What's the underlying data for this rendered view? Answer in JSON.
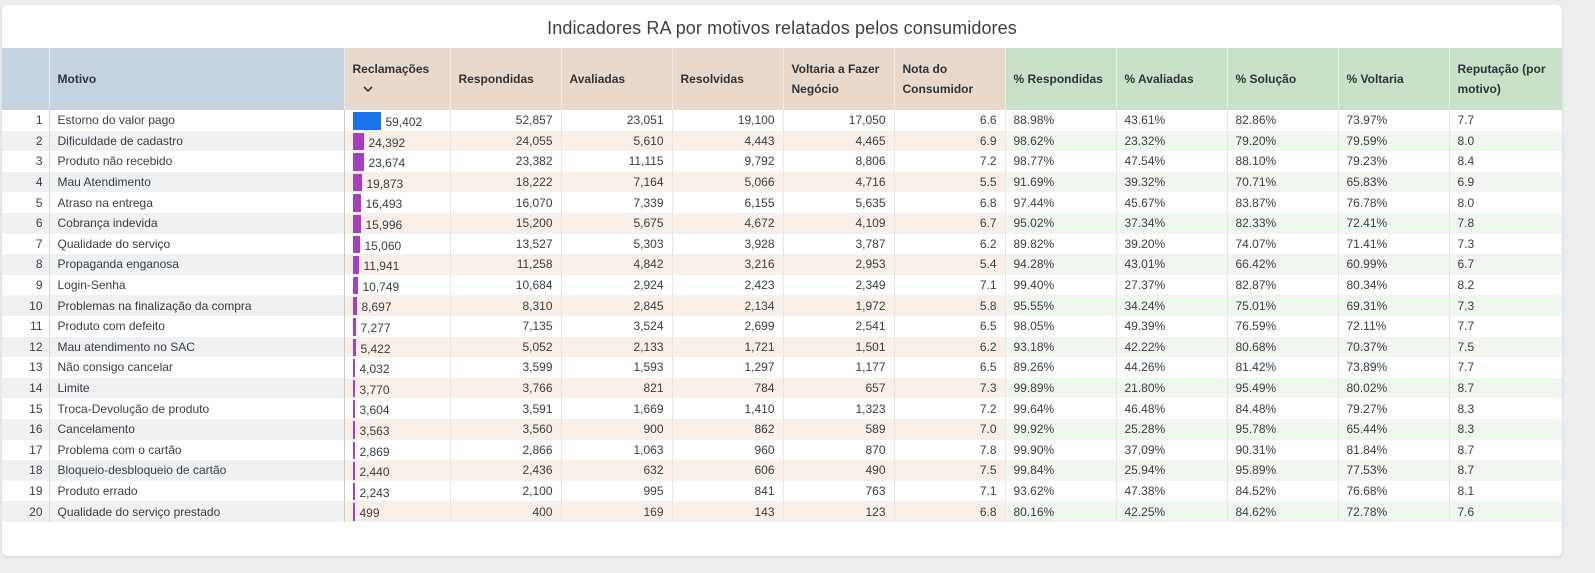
{
  "title": "Indicadores RA por motivos relatados pelos consumidores",
  "colors": {
    "bar_top": "#1a73e8",
    "bar_other": "#a63ec0"
  },
  "headers": {
    "idx": "",
    "motivo": "Motivo",
    "reclamacoes": "Reclamações",
    "respondidas": "Respondidas",
    "avaliadas": "Avaliadas",
    "resolvidas": "Resolvidas",
    "voltaria1": "Voltaria a Fazer",
    "voltaria2": "Negócio",
    "nota1": "Nota do",
    "nota2": "Consumidor",
    "pct_respondidas": "% Respondidas",
    "pct_avaliadas": "% Avaliadas",
    "pct_solucao": "% Solução",
    "pct_voltaria": "% Voltaria",
    "reputacao1": "Reputação (por",
    "reputacao2": "motivo)"
  },
  "sort_icon": "chevron-down-icon",
  "rows": [
    {
      "idx": "1",
      "motivo": "Estorno do valor pago",
      "reclamacoes": "59,402",
      "reclamacoes_value": 59402,
      "respondidas": "52,857",
      "avaliadas": "23,051",
      "resolvidas": "19,100",
      "voltaria": "17,050",
      "nota": "6.6",
      "pct_respondidas": "88.98%",
      "pct_avaliadas": "43.61%",
      "pct_solucao": "82.86%",
      "pct_voltaria": "73.97%",
      "reputacao": "7.7"
    },
    {
      "idx": "2",
      "motivo": "Dificuldade de cadastro",
      "reclamacoes": "24,392",
      "reclamacoes_value": 24392,
      "respondidas": "24,055",
      "avaliadas": "5,610",
      "resolvidas": "4,443",
      "voltaria": "4,465",
      "nota": "6.9",
      "pct_respondidas": "98.62%",
      "pct_avaliadas": "23.32%",
      "pct_solucao": "79.20%",
      "pct_voltaria": "79.59%",
      "reputacao": "8.0"
    },
    {
      "idx": "3",
      "motivo": "Produto não recebido",
      "reclamacoes": "23,674",
      "reclamacoes_value": 23674,
      "respondidas": "23,382",
      "avaliadas": "11,115",
      "resolvidas": "9,792",
      "voltaria": "8,806",
      "nota": "7.2",
      "pct_respondidas": "98.77%",
      "pct_avaliadas": "47.54%",
      "pct_solucao": "88.10%",
      "pct_voltaria": "79.23%",
      "reputacao": "8.4"
    },
    {
      "idx": "4",
      "motivo": "Mau Atendimento",
      "reclamacoes": "19,873",
      "reclamacoes_value": 19873,
      "respondidas": "18,222",
      "avaliadas": "7,164",
      "resolvidas": "5,066",
      "voltaria": "4,716",
      "nota": "5.5",
      "pct_respondidas": "91.69%",
      "pct_avaliadas": "39.32%",
      "pct_solucao": "70.71%",
      "pct_voltaria": "65.83%",
      "reputacao": "6.9"
    },
    {
      "idx": "5",
      "motivo": "Atraso na entrega",
      "reclamacoes": "16,493",
      "reclamacoes_value": 16493,
      "respondidas": "16,070",
      "avaliadas": "7,339",
      "resolvidas": "6,155",
      "voltaria": "5,635",
      "nota": "6.8",
      "pct_respondidas": "97.44%",
      "pct_avaliadas": "45.67%",
      "pct_solucao": "83.87%",
      "pct_voltaria": "76.78%",
      "reputacao": "8.0"
    },
    {
      "idx": "6",
      "motivo": "Cobrança indevida",
      "reclamacoes": "15,996",
      "reclamacoes_value": 15996,
      "respondidas": "15,200",
      "avaliadas": "5,675",
      "resolvidas": "4,672",
      "voltaria": "4,109",
      "nota": "6.7",
      "pct_respondidas": "95.02%",
      "pct_avaliadas": "37.34%",
      "pct_solucao": "82.33%",
      "pct_voltaria": "72.41%",
      "reputacao": "7.8"
    },
    {
      "idx": "7",
      "motivo": "Qualidade do serviço",
      "reclamacoes": "15,060",
      "reclamacoes_value": 15060,
      "respondidas": "13,527",
      "avaliadas": "5,303",
      "resolvidas": "3,928",
      "voltaria": "3,787",
      "nota": "6.2",
      "pct_respondidas": "89.82%",
      "pct_avaliadas": "39.20%",
      "pct_solucao": "74.07%",
      "pct_voltaria": "71.41%",
      "reputacao": "7.3"
    },
    {
      "idx": "8",
      "motivo": "Propaganda enganosa",
      "reclamacoes": "11,941",
      "reclamacoes_value": 11941,
      "respondidas": "11,258",
      "avaliadas": "4,842",
      "resolvidas": "3,216",
      "voltaria": "2,953",
      "nota": "5.4",
      "pct_respondidas": "94.28%",
      "pct_avaliadas": "43.01%",
      "pct_solucao": "66.42%",
      "pct_voltaria": "60.99%",
      "reputacao": "6.7"
    },
    {
      "idx": "9",
      "motivo": "Login-Senha",
      "reclamacoes": "10,749",
      "reclamacoes_value": 10749,
      "respondidas": "10,684",
      "avaliadas": "2,924",
      "resolvidas": "2,423",
      "voltaria": "2,349",
      "nota": "7.1",
      "pct_respondidas": "99.40%",
      "pct_avaliadas": "27.37%",
      "pct_solucao": "82.87%",
      "pct_voltaria": "80.34%",
      "reputacao": "8.2"
    },
    {
      "idx": "10",
      "motivo": "Problemas na finalização da compra",
      "reclamacoes": "8,697",
      "reclamacoes_value": 8697,
      "respondidas": "8,310",
      "avaliadas": "2,845",
      "resolvidas": "2,134",
      "voltaria": "1,972",
      "nota": "5.8",
      "pct_respondidas": "95.55%",
      "pct_avaliadas": "34.24%",
      "pct_solucao": "75.01%",
      "pct_voltaria": "69.31%",
      "reputacao": "7.3"
    },
    {
      "idx": "11",
      "motivo": "Produto com defeito",
      "reclamacoes": "7,277",
      "reclamacoes_value": 7277,
      "respondidas": "7,135",
      "avaliadas": "3,524",
      "resolvidas": "2,699",
      "voltaria": "2,541",
      "nota": "6.5",
      "pct_respondidas": "98.05%",
      "pct_avaliadas": "49.39%",
      "pct_solucao": "76.59%",
      "pct_voltaria": "72.11%",
      "reputacao": "7.7"
    },
    {
      "idx": "12",
      "motivo": "Mau atendimento no SAC",
      "reclamacoes": "5,422",
      "reclamacoes_value": 5422,
      "respondidas": "5,052",
      "avaliadas": "2,133",
      "resolvidas": "1,721",
      "voltaria": "1,501",
      "nota": "6.2",
      "pct_respondidas": "93.18%",
      "pct_avaliadas": "42.22%",
      "pct_solucao": "80.68%",
      "pct_voltaria": "70.37%",
      "reputacao": "7.5"
    },
    {
      "idx": "13",
      "motivo": "Não consigo cancelar",
      "reclamacoes": "4,032",
      "reclamacoes_value": 4032,
      "respondidas": "3,599",
      "avaliadas": "1,593",
      "resolvidas": "1,297",
      "voltaria": "1,177",
      "nota": "6.5",
      "pct_respondidas": "89.26%",
      "pct_avaliadas": "44.26%",
      "pct_solucao": "81.42%",
      "pct_voltaria": "73.89%",
      "reputacao": "7.7"
    },
    {
      "idx": "14",
      "motivo": "Limite",
      "reclamacoes": "3,770",
      "reclamacoes_value": 3770,
      "respondidas": "3,766",
      "avaliadas": "821",
      "resolvidas": "784",
      "voltaria": "657",
      "nota": "7.3",
      "pct_respondidas": "99.89%",
      "pct_avaliadas": "21.80%",
      "pct_solucao": "95.49%",
      "pct_voltaria": "80.02%",
      "reputacao": "8.7"
    },
    {
      "idx": "15",
      "motivo": "Troca-Devolução de produto",
      "reclamacoes": "3,604",
      "reclamacoes_value": 3604,
      "respondidas": "3,591",
      "avaliadas": "1,669",
      "resolvidas": "1,410",
      "voltaria": "1,323",
      "nota": "7.2",
      "pct_respondidas": "99.64%",
      "pct_avaliadas": "46.48%",
      "pct_solucao": "84.48%",
      "pct_voltaria": "79.27%",
      "reputacao": "8.3"
    },
    {
      "idx": "16",
      "motivo": "Cancelamento",
      "reclamacoes": "3,563",
      "reclamacoes_value": 3563,
      "respondidas": "3,560",
      "avaliadas": "900",
      "resolvidas": "862",
      "voltaria": "589",
      "nota": "7.0",
      "pct_respondidas": "99.92%",
      "pct_avaliadas": "25.28%",
      "pct_solucao": "95.78%",
      "pct_voltaria": "65.44%",
      "reputacao": "8.3"
    },
    {
      "idx": "17",
      "motivo": "Problema com o cartão",
      "reclamacoes": "2,869",
      "reclamacoes_value": 2869,
      "respondidas": "2,866",
      "avaliadas": "1,063",
      "resolvidas": "960",
      "voltaria": "870",
      "nota": "7.8",
      "pct_respondidas": "99.90%",
      "pct_avaliadas": "37.09%",
      "pct_solucao": "90.31%",
      "pct_voltaria": "81.84%",
      "reputacao": "8.7"
    },
    {
      "idx": "18",
      "motivo": "Bloqueio-desbloqueio de cartão",
      "reclamacoes": "2,440",
      "reclamacoes_value": 2440,
      "respondidas": "2,436",
      "avaliadas": "632",
      "resolvidas": "606",
      "voltaria": "490",
      "nota": "7.5",
      "pct_respondidas": "99.84%",
      "pct_avaliadas": "25.94%",
      "pct_solucao": "95.89%",
      "pct_voltaria": "77.53%",
      "reputacao": "8.7"
    },
    {
      "idx": "19",
      "motivo": "Produto errado",
      "reclamacoes": "2,243",
      "reclamacoes_value": 2243,
      "respondidas": "2,100",
      "avaliadas": "995",
      "resolvidas": "841",
      "voltaria": "763",
      "nota": "7.1",
      "pct_respondidas": "93.62%",
      "pct_avaliadas": "47.38%",
      "pct_solucao": "84.52%",
      "pct_voltaria": "76.68%",
      "reputacao": "8.1"
    },
    {
      "idx": "20",
      "motivo": "Qualidade do serviço prestado",
      "reclamacoes": "499",
      "reclamacoes_value": 499,
      "respondidas": "400",
      "avaliadas": "169",
      "resolvidas": "143",
      "voltaria": "123",
      "nota": "6.8",
      "pct_respondidas": "80.16%",
      "pct_avaliadas": "42.25%",
      "pct_solucao": "84.62%",
      "pct_voltaria": "72.78%",
      "reputacao": "7.6"
    }
  ]
}
